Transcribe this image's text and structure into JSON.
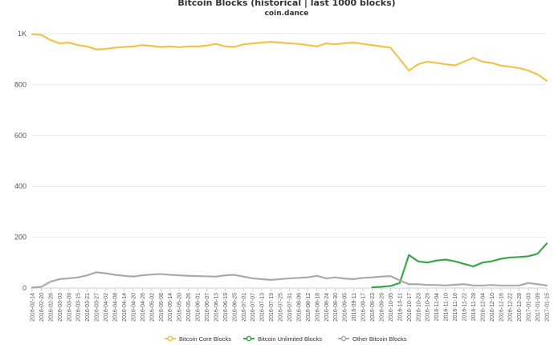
{
  "chart_data": {
    "type": "line",
    "title": "Bitcoin Blocks (historical | last 1000 blocks)",
    "subtitle": "coin.dance",
    "ylim": [
      0,
      1000
    ],
    "yticks": [
      "0",
      "200",
      "400",
      "600",
      "800",
      "1K"
    ],
    "ytick_values": [
      0,
      200,
      400,
      600,
      800,
      1000
    ],
    "grid": true,
    "legend_position": "bottom-center",
    "categories": [
      "2016-02-14",
      "2016-02-20",
      "2016-02-26",
      "2016-03-03",
      "2016-03-09",
      "2016-03-15",
      "2016-03-21",
      "2016-03-27",
      "2016-04-02",
      "2016-04-08",
      "2016-04-14",
      "2016-04-20",
      "2016-04-26",
      "2016-05-02",
      "2016-05-08",
      "2016-05-14",
      "2016-05-20",
      "2016-05-26",
      "2016-06-01",
      "2016-06-07",
      "2016-06-13",
      "2016-06-19",
      "2016-06-25",
      "2016-07-01",
      "2016-07-07",
      "2016-07-13",
      "2016-07-19",
      "2016-07-25",
      "2016-07-31",
      "2016-08-06",
      "2016-08-12",
      "2016-08-18",
      "2016-08-24",
      "2016-08-30",
      "2016-09-05",
      "2016-09-11",
      "2016-09-17",
      "2016-09-23",
      "2016-09-29",
      "2016-10-05",
      "2016-10-11",
      "2016-10-17",
      "2016-10-23",
      "2016-10-29",
      "2016-11-04",
      "2016-11-10",
      "2016-11-16",
      "2016-11-22",
      "2016-11-28",
      "2016-12-04",
      "2016-12-10",
      "2016-12-16",
      "2016-12-22",
      "2016-12-28",
      "2017-01-03",
      "2017-01-09",
      "2017-01-15"
    ],
    "series": [
      {
        "name": "Bitcoin Core Blocks",
        "color": "#f0c44c",
        "values": [
          998,
          995,
          975,
          962,
          965,
          955,
          950,
          938,
          940,
          945,
          948,
          950,
          955,
          952,
          948,
          950,
          947,
          950,
          950,
          953,
          960,
          950,
          948,
          958,
          962,
          965,
          968,
          965,
          962,
          960,
          955,
          950,
          962,
          958,
          963,
          965,
          960,
          955,
          950,
          945,
          900,
          855,
          880,
          890,
          885,
          880,
          875,
          890,
          905,
          890,
          885,
          875,
          870,
          865,
          855,
          840,
          815
        ]
      },
      {
        "name": "Bitcoin Unlimited Blocks",
        "color": "#3aa64a",
        "values": [
          null,
          null,
          null,
          null,
          null,
          null,
          null,
          null,
          null,
          null,
          null,
          null,
          null,
          null,
          null,
          null,
          null,
          null,
          null,
          null,
          null,
          null,
          null,
          null,
          null,
          null,
          null,
          null,
          null,
          null,
          null,
          null,
          null,
          null,
          null,
          null,
          null,
          3,
          5,
          8,
          20,
          130,
          105,
          100,
          108,
          112,
          105,
          95,
          85,
          100,
          105,
          115,
          120,
          122,
          125,
          135,
          175
        ]
      },
      {
        "name": "Other Bitcoin Blocks",
        "color": "#aaaaaa",
        "values": [
          2,
          5,
          25,
          35,
          38,
          42,
          50,
          62,
          58,
          52,
          48,
          45,
          50,
          53,
          55,
          52,
          50,
          48,
          47,
          46,
          45,
          50,
          52,
          45,
          38,
          35,
          32,
          35,
          38,
          40,
          42,
          48,
          38,
          42,
          37,
          35,
          40,
          42,
          45,
          47,
          30,
          15,
          15,
          12,
          12,
          10,
          13,
          15,
          10,
          10,
          12,
          10,
          10,
          10,
          20,
          15,
          10
        ]
      }
    ]
  }
}
